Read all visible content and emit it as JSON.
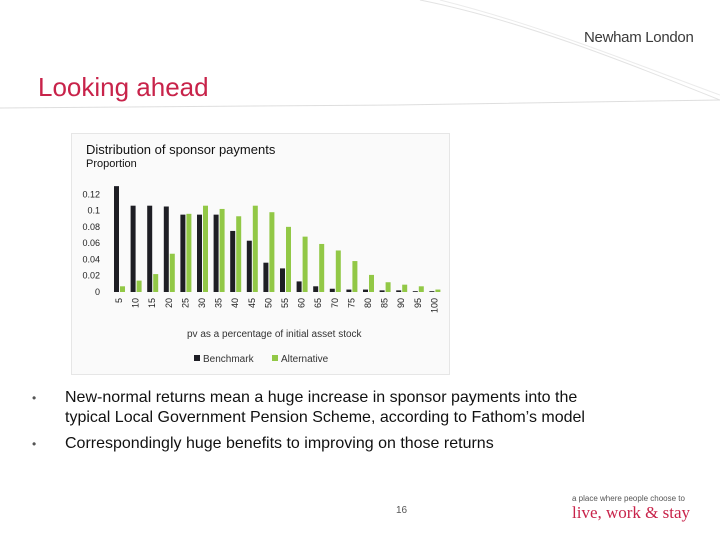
{
  "header": {
    "logo_text": "Newham London"
  },
  "slide": {
    "title": "Looking ahead",
    "page_number": "16"
  },
  "bullets": [
    "New-normal returns mean a huge increase in sponsor payments into the typical Local Government Pension Scheme, according to Fathom’s model",
    "Correspondingly huge benefits to improving on those returns"
  ],
  "footer": {
    "tagline_small": "a place where people choose to",
    "tagline_big": "live, work & stay"
  },
  "colors": {
    "accent": "#c8234a",
    "benchmark": "#1e1e24",
    "alternative": "#92c846"
  },
  "chart_data": {
    "type": "bar",
    "title": "Distribution of sponsor payments",
    "ylabel": "Proportion",
    "xlabel": "pv as a percentage of initial asset stock",
    "categories": [
      "5",
      "10",
      "15",
      "20",
      "25",
      "30",
      "35",
      "40",
      "45",
      "50",
      "55",
      "60",
      "65",
      "70",
      "75",
      "80",
      "85",
      "90",
      "95",
      "100"
    ],
    "series": [
      {
        "name": "Benchmark",
        "values": [
          0.13,
          0.106,
          0.106,
          0.105,
          0.095,
          0.095,
          0.095,
          0.075,
          0.063,
          0.036,
          0.029,
          0.013,
          0.007,
          0.004,
          0.003,
          0.003,
          0.002,
          0.002,
          0.001,
          0.001
        ]
      },
      {
        "name": "Alternative",
        "values": [
          0.007,
          0.014,
          0.022,
          0.047,
          0.096,
          0.106,
          0.102,
          0.093,
          0.106,
          0.098,
          0.08,
          0.068,
          0.059,
          0.051,
          0.038,
          0.021,
          0.012,
          0.009,
          0.007,
          0.003
        ]
      }
    ],
    "yticks": [
      {
        "value": 0,
        "label": "0"
      },
      {
        "value": 0.02,
        "label": "0.02"
      },
      {
        "value": 0.04,
        "label": "0.04"
      },
      {
        "value": 0.06,
        "label": "0.06"
      },
      {
        "value": 0.08,
        "label": "0.08"
      },
      {
        "value": 0.1,
        "label": "0.1"
      },
      {
        "value": 0.12,
        "label": "0.12"
      }
    ],
    "ylim": [
      0,
      0.14
    ],
    "legend_position": "bottom"
  }
}
